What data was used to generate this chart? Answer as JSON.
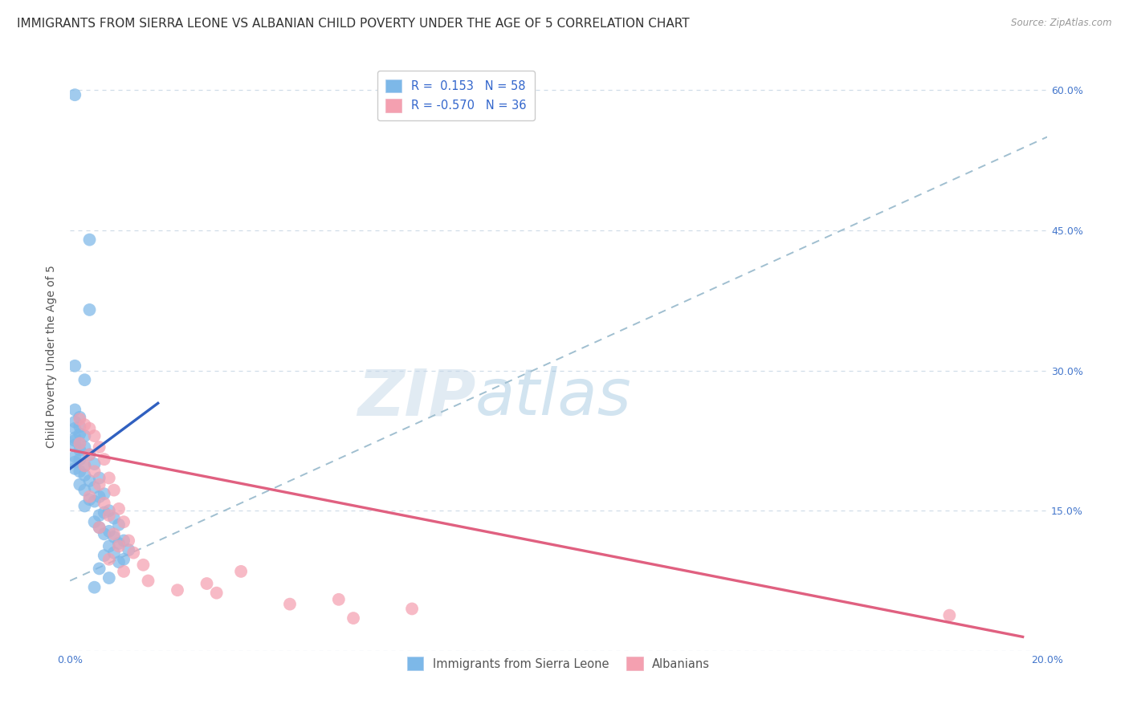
{
  "title": "IMMIGRANTS FROM SIERRA LEONE VS ALBANIAN CHILD POVERTY UNDER THE AGE OF 5 CORRELATION CHART",
  "source": "Source: ZipAtlas.com",
  "ylabel": "Child Poverty Under the Age of 5",
  "xlim": [
    0.0,
    20.0
  ],
  "ylim": [
    0.0,
    63.0
  ],
  "r_blue": 0.153,
  "n_blue": 58,
  "r_pink": -0.57,
  "n_pink": 36,
  "legend_label_blue": "Immigrants from Sierra Leone",
  "legend_label_pink": "Albanians",
  "scatter_blue": [
    [
      0.1,
      59.5
    ],
    [
      0.4,
      44.0
    ],
    [
      0.4,
      36.5
    ],
    [
      0.1,
      30.5
    ],
    [
      0.3,
      29.0
    ],
    [
      0.1,
      25.8
    ],
    [
      0.2,
      25.0
    ],
    [
      0.1,
      24.5
    ],
    [
      0.2,
      24.0
    ],
    [
      0.1,
      23.8
    ],
    [
      0.2,
      23.2
    ],
    [
      0.3,
      23.0
    ],
    [
      0.1,
      22.8
    ],
    [
      0.1,
      22.5
    ],
    [
      0.2,
      22.2
    ],
    [
      0.1,
      22.0
    ],
    [
      0.3,
      21.8
    ],
    [
      0.2,
      21.5
    ],
    [
      0.4,
      21.0
    ],
    [
      0.1,
      20.8
    ],
    [
      0.2,
      20.5
    ],
    [
      0.1,
      20.2
    ],
    [
      0.5,
      20.0
    ],
    [
      0.3,
      19.8
    ],
    [
      0.1,
      19.5
    ],
    [
      0.2,
      19.2
    ],
    [
      0.3,
      18.8
    ],
    [
      0.6,
      18.5
    ],
    [
      0.4,
      18.2
    ],
    [
      0.2,
      17.8
    ],
    [
      0.5,
      17.5
    ],
    [
      0.3,
      17.2
    ],
    [
      0.7,
      16.8
    ],
    [
      0.6,
      16.5
    ],
    [
      0.4,
      16.2
    ],
    [
      0.5,
      16.0
    ],
    [
      0.3,
      15.5
    ],
    [
      0.8,
      15.0
    ],
    [
      0.7,
      14.8
    ],
    [
      0.6,
      14.5
    ],
    [
      0.9,
      14.2
    ],
    [
      0.5,
      13.8
    ],
    [
      1.0,
      13.5
    ],
    [
      0.6,
      13.2
    ],
    [
      0.8,
      12.8
    ],
    [
      0.7,
      12.5
    ],
    [
      0.9,
      12.2
    ],
    [
      1.1,
      11.8
    ],
    [
      1.0,
      11.5
    ],
    [
      0.8,
      11.2
    ],
    [
      1.2,
      10.8
    ],
    [
      0.9,
      10.5
    ],
    [
      0.7,
      10.2
    ],
    [
      1.1,
      9.8
    ],
    [
      1.0,
      9.5
    ],
    [
      0.6,
      8.8
    ],
    [
      0.8,
      7.8
    ],
    [
      0.5,
      6.8
    ]
  ],
  "scatter_pink": [
    [
      0.2,
      24.8
    ],
    [
      0.3,
      24.2
    ],
    [
      0.4,
      23.8
    ],
    [
      0.5,
      23.0
    ],
    [
      0.2,
      22.2
    ],
    [
      0.6,
      21.8
    ],
    [
      0.4,
      21.0
    ],
    [
      0.7,
      20.5
    ],
    [
      0.3,
      19.8
    ],
    [
      0.5,
      19.2
    ],
    [
      0.8,
      18.5
    ],
    [
      0.6,
      17.8
    ],
    [
      0.9,
      17.2
    ],
    [
      0.4,
      16.5
    ],
    [
      0.7,
      15.8
    ],
    [
      1.0,
      15.2
    ],
    [
      0.8,
      14.5
    ],
    [
      1.1,
      13.8
    ],
    [
      0.6,
      13.2
    ],
    [
      0.9,
      12.5
    ],
    [
      1.2,
      11.8
    ],
    [
      1.0,
      11.2
    ],
    [
      1.3,
      10.5
    ],
    [
      0.8,
      9.8
    ],
    [
      1.5,
      9.2
    ],
    [
      1.1,
      8.5
    ],
    [
      3.5,
      8.5
    ],
    [
      1.6,
      7.5
    ],
    [
      2.8,
      7.2
    ],
    [
      2.2,
      6.5
    ],
    [
      3.0,
      6.2
    ],
    [
      5.5,
      5.5
    ],
    [
      4.5,
      5.0
    ],
    [
      7.0,
      4.5
    ],
    [
      5.8,
      3.5
    ],
    [
      18.0,
      3.8
    ]
  ],
  "blue_line_x": [
    0.0,
    1.8
  ],
  "blue_line_y": [
    19.5,
    26.5
  ],
  "pink_line_x": [
    0.0,
    19.5
  ],
  "pink_line_y": [
    21.5,
    1.5
  ],
  "dot_color_blue": "#7db8e8",
  "dot_color_pink": "#f4a0b0",
  "line_color_blue": "#3060c0",
  "line_color_pink": "#e06080",
  "trend_line_color": "#a0bfd0",
  "trend_line_x": [
    0.0,
    20.0
  ],
  "trend_line_y": [
    7.5,
    55.0
  ],
  "background_color": "#ffffff",
  "grid_color": "#d0dde8",
  "title_fontsize": 11,
  "axis_label_fontsize": 10,
  "tick_fontsize": 9,
  "watermark_zip": "ZIP",
  "watermark_atlas": "atlas",
  "right_y_ticks": [
    15.0,
    30.0,
    45.0,
    60.0
  ],
  "right_y_labels": [
    "15.0%",
    "30.0%",
    "45.0%",
    "60.0%"
  ],
  "x_ticks": [
    0.0,
    4.0,
    8.0,
    12.0,
    16.0,
    20.0
  ],
  "x_tick_labels": [
    "0.0%",
    "",
    "",
    "",
    "",
    "20.0%"
  ]
}
